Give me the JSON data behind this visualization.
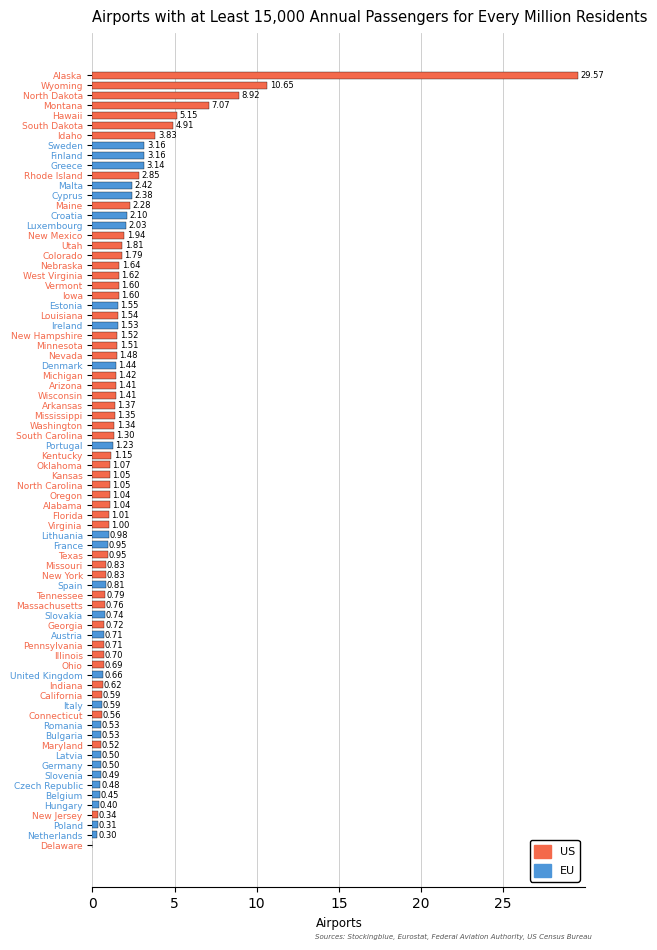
{
  "title": "Airports with at Least 15,000 Annual Passengers for Every Million Residents",
  "xlabel": "Airports",
  "source": "Sources: Stockingblue, Eurostat, Federal Aviation Authority, US Census Bureau",
  "categories": [
    "Alaska",
    "Wyoming",
    "North Dakota",
    "Montana",
    "Hawaii",
    "South Dakota",
    "Idaho",
    "Sweden",
    "Finland",
    "Greece",
    "Rhode Island",
    "Malta",
    "Cyprus",
    "Maine",
    "Croatia",
    "Luxembourg",
    "New Mexico",
    "Utah",
    "Colorado",
    "Nebraska",
    "West Virginia",
    "Vermont",
    "Iowa",
    "Estonia",
    "Louisiana",
    "Ireland",
    "New Hampshire",
    "Minnesota",
    "Nevada",
    "Denmark",
    "Michigan",
    "Arizona",
    "Wisconsin",
    "Arkansas",
    "Mississippi",
    "Washington",
    "South Carolina",
    "Portugal",
    "Kentucky",
    "Oklahoma",
    "Kansas",
    "North Carolina",
    "Oregon",
    "Alabama",
    "Florida",
    "Virginia",
    "Lithuania",
    "France",
    "Texas",
    "Missouri",
    "New York",
    "Spain",
    "Tennessee",
    "Massachusetts",
    "Slovakia",
    "Georgia",
    "Austria",
    "Pennsylvania",
    "Illinois",
    "Ohio",
    "United Kingdom",
    "Indiana",
    "California",
    "Italy",
    "Connecticut",
    "Romania",
    "Bulgaria",
    "Maryland",
    "Latvia",
    "Germany",
    "Slovenia",
    "Czech Republic",
    "Belgium",
    "Hungary",
    "New Jersey",
    "Poland",
    "Netherlands",
    "Delaware"
  ],
  "values": [
    29.57,
    10.65,
    8.92,
    7.07,
    5.15,
    4.91,
    3.83,
    3.16,
    3.16,
    3.14,
    2.85,
    2.42,
    2.38,
    2.28,
    2.1,
    2.03,
    1.94,
    1.81,
    1.79,
    1.64,
    1.62,
    1.6,
    1.6,
    1.55,
    1.54,
    1.53,
    1.52,
    1.51,
    1.48,
    1.44,
    1.42,
    1.41,
    1.41,
    1.37,
    1.35,
    1.34,
    1.3,
    1.23,
    1.15,
    1.07,
    1.05,
    1.05,
    1.04,
    1.04,
    1.01,
    1.0,
    0.98,
    0.95,
    0.95,
    0.83,
    0.83,
    0.81,
    0.79,
    0.76,
    0.74,
    0.72,
    0.71,
    0.71,
    0.7,
    0.69,
    0.66,
    0.62,
    0.59,
    0.59,
    0.56,
    0.53,
    0.53,
    0.52,
    0.5,
    0.5,
    0.49,
    0.48,
    0.45,
    0.4,
    0.34,
    0.31,
    0.3,
    0.0
  ],
  "types": [
    "US",
    "US",
    "US",
    "US",
    "US",
    "US",
    "US",
    "EU",
    "EU",
    "EU",
    "US",
    "EU",
    "EU",
    "US",
    "EU",
    "EU",
    "US",
    "US",
    "US",
    "US",
    "US",
    "US",
    "US",
    "EU",
    "US",
    "EU",
    "US",
    "US",
    "US",
    "EU",
    "US",
    "US",
    "US",
    "US",
    "US",
    "US",
    "US",
    "EU",
    "US",
    "US",
    "US",
    "US",
    "US",
    "US",
    "US",
    "US",
    "EU",
    "EU",
    "US",
    "US",
    "US",
    "EU",
    "US",
    "US",
    "EU",
    "US",
    "EU",
    "US",
    "US",
    "US",
    "EU",
    "US",
    "US",
    "EU",
    "US",
    "EU",
    "EU",
    "US",
    "EU",
    "EU",
    "EU",
    "EU",
    "EU",
    "EU",
    "US",
    "EU",
    "EU",
    "US"
  ],
  "us_color": "#f4694b",
  "eu_color": "#4d96d9",
  "bg_color": "#ffffff",
  "grid_color": "#c8c8c8",
  "xlim": [
    0,
    30
  ],
  "title_fontsize": 10.5,
  "label_fontsize": 6.5,
  "value_fontsize": 6.0
}
